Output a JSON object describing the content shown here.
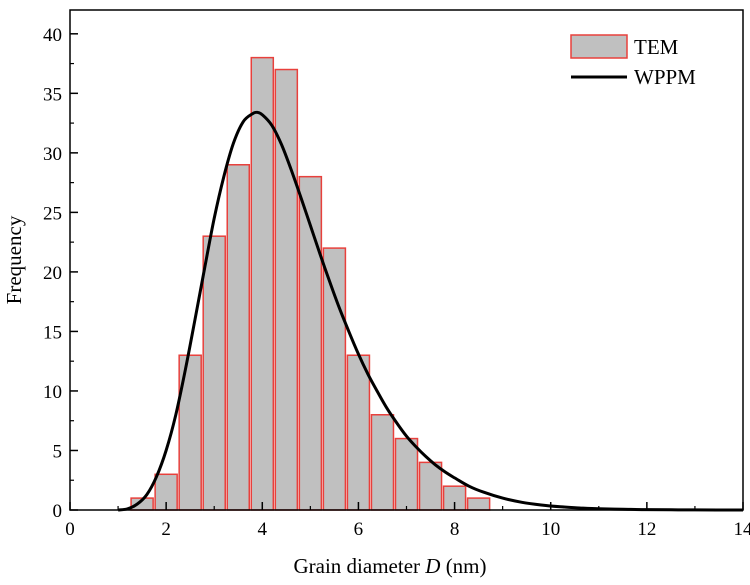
{
  "chart_data": {
    "type": "bar",
    "title": "",
    "xlabel": {
      "prefix": "Grain diameter ",
      "italic": "D",
      "suffix": " (nm)"
    },
    "ylabel": "Frequency",
    "xlim": [
      0,
      14
    ],
    "ylim": [
      0,
      42
    ],
    "x_ticks": [
      0,
      2,
      4,
      6,
      8,
      10,
      12,
      14
    ],
    "y_ticks": [
      0,
      5,
      10,
      15,
      20,
      25,
      30,
      35,
      40
    ],
    "grid": false,
    "legend_position": "top-right",
    "series": [
      {
        "name": "TEM",
        "type": "bar",
        "fill_color": "#c0c0c0",
        "edge_color": "#e8403c",
        "bin_width": 0.5,
        "bin_centers": [
          1.5,
          2.0,
          2.5,
          3.0,
          3.5,
          4.0,
          4.5,
          5.0,
          5.5,
          6.0,
          6.5,
          7.0,
          7.5,
          8.0,
          8.5
        ],
        "values": [
          1,
          3,
          13,
          23,
          29,
          38,
          37,
          28,
          22,
          13,
          8,
          6,
          4,
          2,
          1
        ]
      },
      {
        "name": "WPPM",
        "type": "line",
        "color": "#000000",
        "x": [
          1.0,
          1.2,
          1.4,
          1.6,
          1.8,
          2.0,
          2.2,
          2.4,
          2.6,
          2.8,
          3.0,
          3.2,
          3.4,
          3.6,
          3.8,
          3.9,
          4.0,
          4.2,
          4.4,
          4.6,
          4.8,
          5.0,
          5.2,
          5.4,
          5.6,
          5.8,
          6.0,
          6.2,
          6.4,
          6.6,
          6.8,
          7.0,
          7.2,
          7.4,
          7.6,
          7.8,
          8.0,
          8.3,
          8.6,
          9.0,
          9.4,
          9.8,
          10.2,
          10.6,
          11.0,
          11.5,
          12.0,
          12.5,
          13.0,
          14.0
        ],
        "y": [
          0,
          0.1,
          0.5,
          1.3,
          2.8,
          5.0,
          8.0,
          11.8,
          16.0,
          20.3,
          24.5,
          28.0,
          30.8,
          32.6,
          33.3,
          33.4,
          33.2,
          32.3,
          30.7,
          28.6,
          26.3,
          23.9,
          21.5,
          19.2,
          17.0,
          15.0,
          13.1,
          11.4,
          9.9,
          8.5,
          7.3,
          6.2,
          5.3,
          4.5,
          3.8,
          3.2,
          2.7,
          2.0,
          1.5,
          1.0,
          0.65,
          0.42,
          0.27,
          0.17,
          0.1,
          0.06,
          0.03,
          0.015,
          0.008,
          0
        ]
      }
    ]
  }
}
